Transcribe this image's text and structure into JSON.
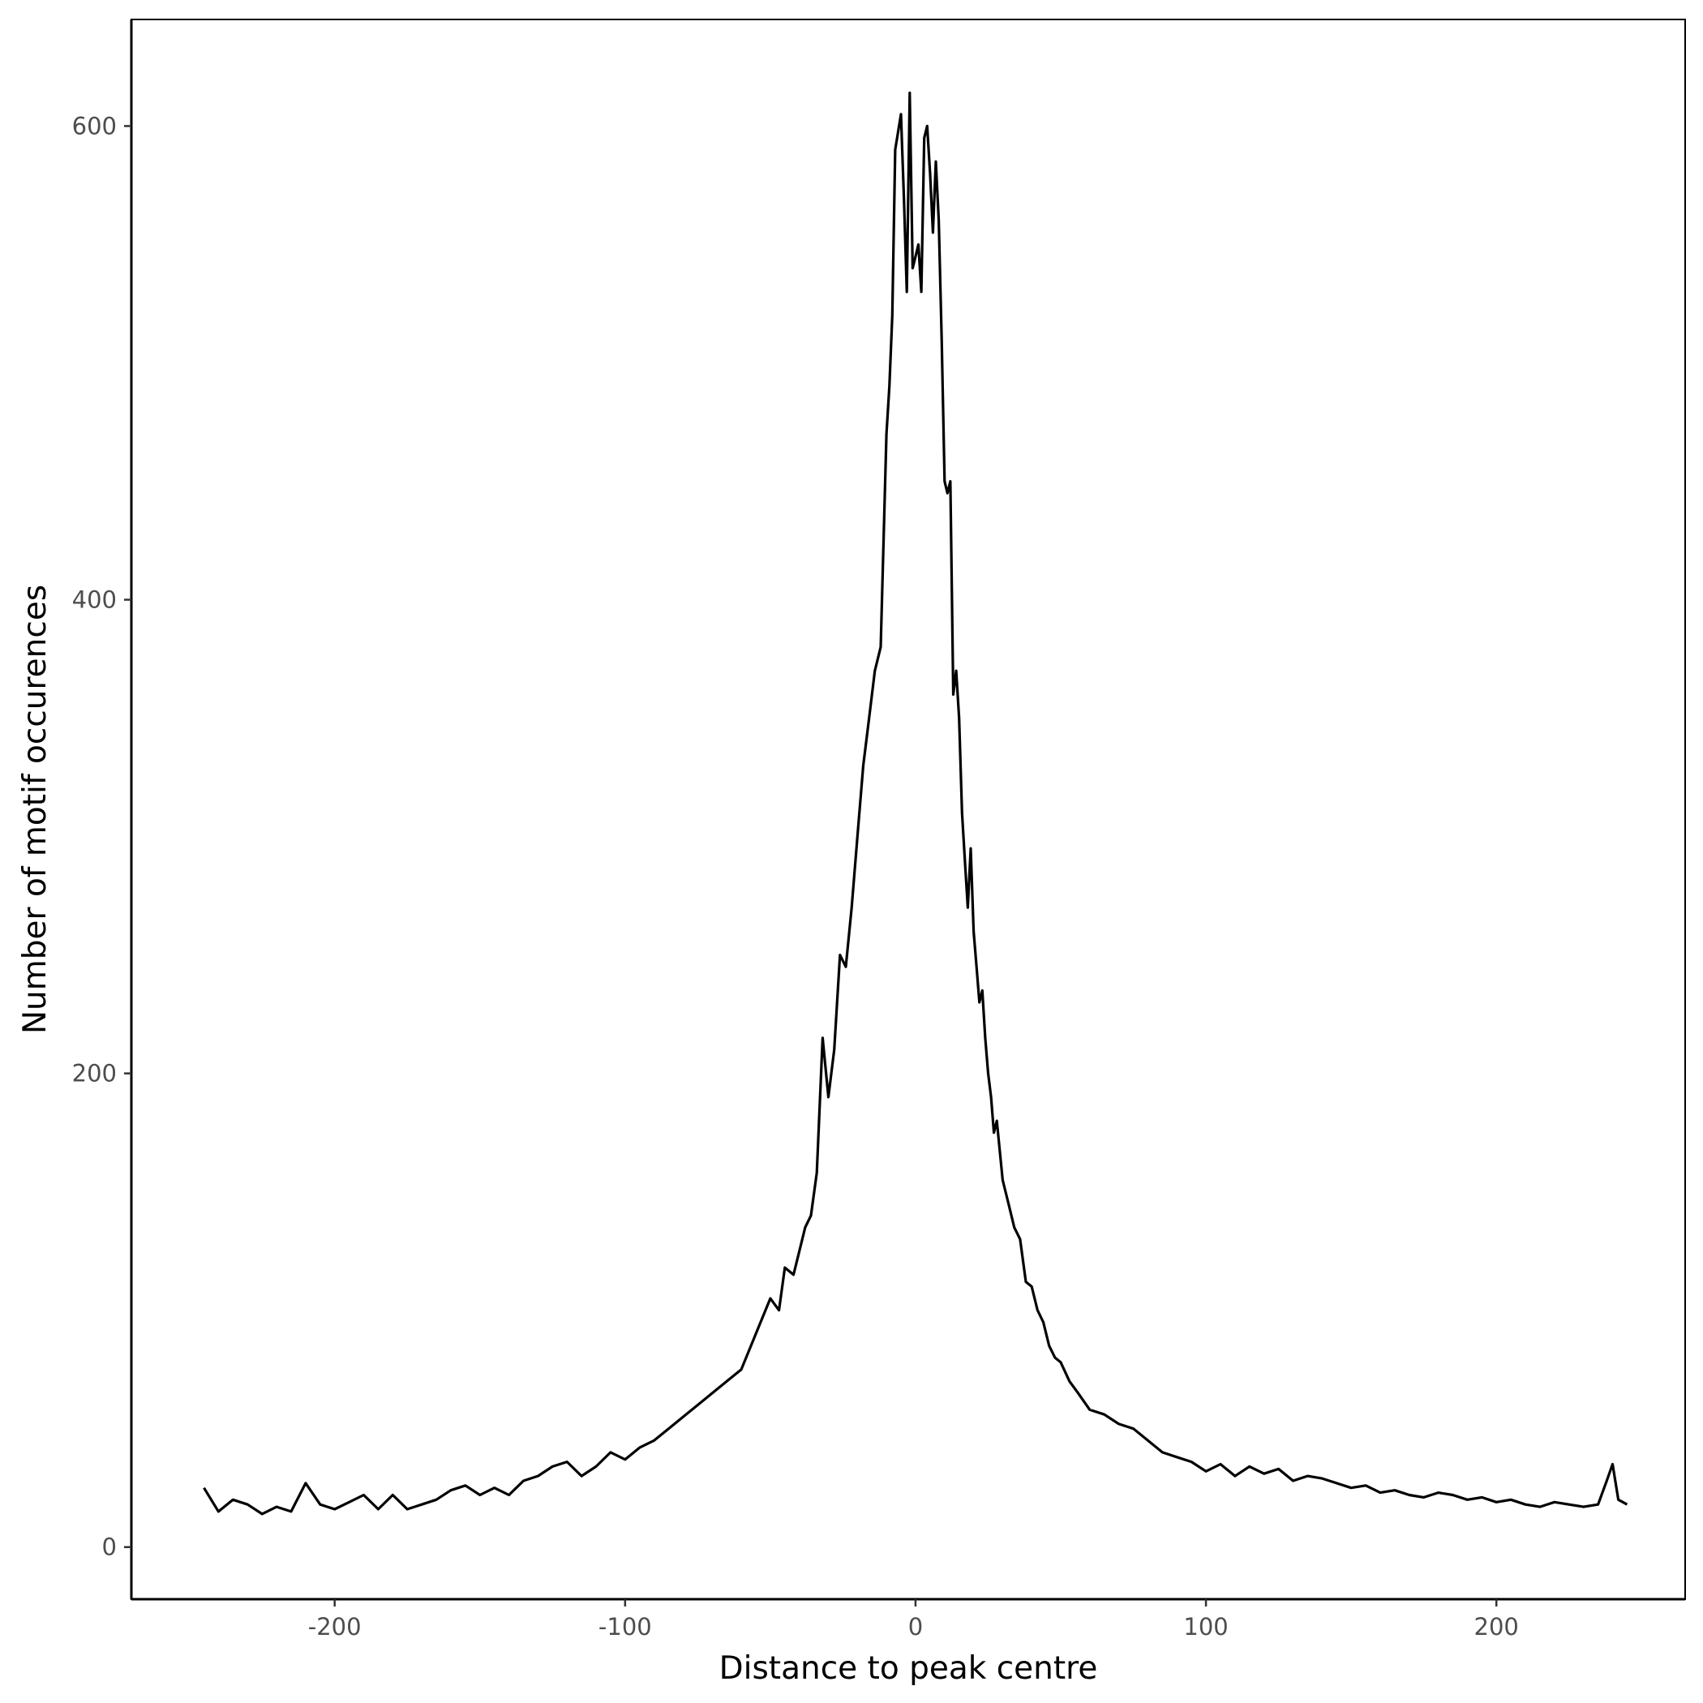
{
  "chart_data": {
    "type": "line",
    "title": "",
    "xlabel": "Distance to peak centre",
    "ylabel": "Number of motif occurences",
    "xlim": [
      -270,
      265
    ],
    "ylim": [
      -22,
      645
    ],
    "xticks": [
      -200,
      -100,
      0,
      100,
      200
    ],
    "yticks": [
      0,
      200,
      400,
      600
    ],
    "xtick_labels": [
      "-200",
      "-100",
      "0",
      "100",
      "200"
    ],
    "ytick_labels": [
      "0",
      "200",
      "400",
      "600"
    ],
    "grid": false,
    "legend": "none",
    "line_color": "#000000",
    "series": [
      {
        "x": [
          -245,
          -240,
          -235,
          -230,
          -225,
          -220,
          -215,
          -210,
          -205,
          -200,
          -195,
          -190,
          -185,
          -180,
          -175,
          -170,
          -165,
          -160,
          -155,
          -150,
          -145,
          -140,
          -135,
          -130,
          -125,
          -120,
          -115,
          -110,
          -105,
          -100,
          -95,
          -90,
          -85,
          -80,
          -75,
          -70,
          -65,
          -60,
          -55,
          -50,
          -47,
          -45,
          -42,
          -40,
          -38,
          -36,
          -34,
          -32,
          -30,
          -28,
          -26,
          -24,
          -22,
          -20,
          -18,
          -16,
          -14,
          -12,
          -10,
          -9,
          -8,
          -7,
          -5,
          -4,
          -3,
          -2,
          -1,
          0,
          1,
          2,
          3,
          4,
          5,
          6,
          7,
          8,
          9,
          10,
          11,
          12,
          13,
          14,
          15,
          16,
          17,
          18,
          19,
          20,
          21,
          22,
          23,
          24,
          25,
          26,
          27,
          28,
          30,
          32,
          34,
          36,
          38,
          40,
          42,
          44,
          46,
          48,
          50,
          53,
          56,
          60,
          65,
          70,
          75,
          80,
          85,
          90,
          95,
          100,
          105,
          110,
          115,
          120,
          125,
          130,
          135,
          140,
          145,
          150,
          155,
          160,
          165,
          170,
          175,
          180,
          185,
          190,
          195,
          200,
          205,
          210,
          215,
          220,
          225,
          230,
          235,
          238,
          240,
          242,
          245
        ],
        "y": [
          25,
          15,
          20,
          18,
          14,
          17,
          15,
          27,
          18,
          16,
          19,
          22,
          16,
          22,
          16,
          18,
          20,
          24,
          26,
          22,
          25,
          22,
          28,
          30,
          34,
          36,
          30,
          34,
          40,
          37,
          42,
          45,
          50,
          55,
          60,
          65,
          70,
          75,
          90,
          105,
          100,
          118,
          115,
          125,
          135,
          140,
          158,
          215,
          190,
          210,
          250,
          245,
          270,
          300,
          330,
          350,
          370,
          380,
          470,
          490,
          520,
          590,
          605,
          570,
          530,
          614,
          540,
          545,
          550,
          530,
          595,
          600,
          580,
          555,
          585,
          560,
          510,
          450,
          445,
          450,
          360,
          370,
          350,
          310,
          290,
          270,
          295,
          260,
          245,
          230,
          235,
          215,
          200,
          190,
          175,
          180,
          155,
          145,
          135,
          130,
          112,
          110,
          100,
          95,
          85,
          80,
          78,
          70,
          65,
          58,
          56,
          52,
          50,
          45,
          40,
          38,
          36,
          32,
          35,
          30,
          34,
          31,
          33,
          28,
          30,
          29,
          27,
          25,
          26,
          23,
          24,
          22,
          21,
          23,
          22,
          20,
          21,
          19,
          20,
          18,
          17,
          19,
          18,
          17,
          18,
          28,
          35,
          20,
          18
        ]
      }
    ]
  }
}
